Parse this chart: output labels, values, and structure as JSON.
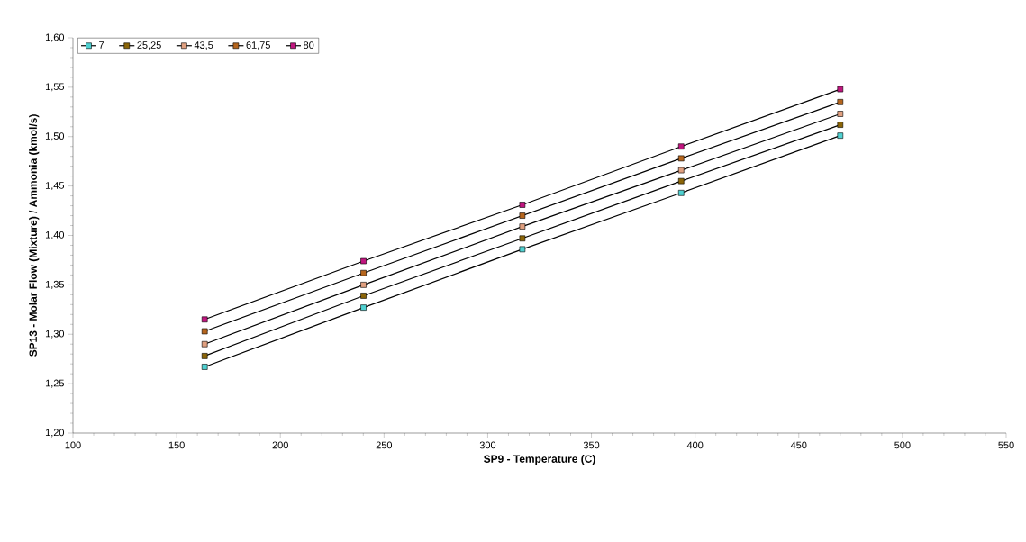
{
  "chart_data": {
    "type": "line",
    "xlabel": "SP9 - Temperature (C)",
    "ylabel": "SP13 - Molar Flow (Mixture) / Ammonia (kmol/s)",
    "x": [
      163.5,
      240.1,
      316.7,
      393.3,
      470
    ],
    "series": [
      {
        "name": "7",
        "color": "#4fd1d1",
        "values": [
          1.267,
          1.327,
          1.386,
          1.443,
          1.501
        ]
      },
      {
        "name": "25,25",
        "color": "#8b6508",
        "values": [
          1.278,
          1.339,
          1.397,
          1.455,
          1.512
        ]
      },
      {
        "name": "43,5",
        "color": "#e0a080",
        "values": [
          1.29,
          1.35,
          1.409,
          1.466,
          1.523
        ]
      },
      {
        "name": "61,75",
        "color": "#b5651d",
        "values": [
          1.303,
          1.362,
          1.42,
          1.478,
          1.535
        ]
      },
      {
        "name": "80",
        "color": "#c0157f",
        "values": [
          1.315,
          1.374,
          1.431,
          1.49,
          1.548
        ]
      }
    ],
    "xlim": [
      100,
      550
    ],
    "xticks": [
      100,
      150,
      200,
      250,
      300,
      350,
      400,
      450,
      500,
      550
    ],
    "ylim": [
      1.2,
      1.6
    ],
    "yticks": [
      {
        "value": 1.2,
        "label": "1,20"
      },
      {
        "value": 1.25,
        "label": "1,25"
      },
      {
        "value": 1.3,
        "label": "1,30"
      },
      {
        "value": 1.35,
        "label": "1,35"
      },
      {
        "value": 1.4,
        "label": "1,40"
      },
      {
        "value": 1.45,
        "label": "1,45"
      },
      {
        "value": 1.5,
        "label": "1,50"
      },
      {
        "value": 1.55,
        "label": "1,55"
      },
      {
        "value": 1.6,
        "label": "1,60"
      }
    ],
    "legend": "top left",
    "marker": "square",
    "line_style": "solid",
    "grid": false
  }
}
